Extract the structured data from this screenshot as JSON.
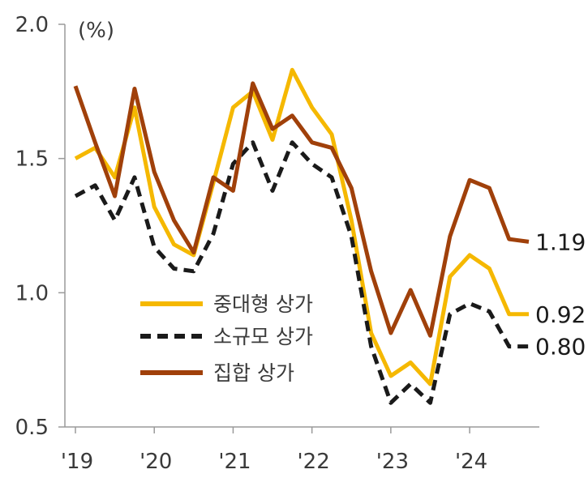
{
  "chart_data": {
    "type": "line",
    "title": "",
    "unit_label": "(%)",
    "xlabel": "",
    "ylabel": "",
    "ylim": [
      0.5,
      2.0
    ],
    "y_ticks": [
      "2.0",
      "1.5",
      "1.0",
      "0.5"
    ],
    "x_tick_labels": [
      "'19",
      "'20",
      "'21",
      "'22",
      "'23",
      "'24"
    ],
    "x_tick_positions": [
      0,
      4,
      8,
      12,
      16,
      20
    ],
    "grid": false,
    "legend_position": "center-left",
    "x": [
      0,
      1,
      2,
      3,
      4,
      5,
      6,
      7,
      8,
      9,
      10,
      11,
      12,
      13,
      14,
      15,
      16,
      17,
      18,
      19,
      20,
      21,
      22,
      23
    ],
    "series": [
      {
        "name": "중대형 상가",
        "color": "#F5B800",
        "dash": "solid",
        "values": [
          1.5,
          1.54,
          1.43,
          1.69,
          1.32,
          1.18,
          1.14,
          1.41,
          1.69,
          1.75,
          1.57,
          1.83,
          1.69,
          1.59,
          1.27,
          0.85,
          0.69,
          0.74,
          0.66,
          1.06,
          1.14,
          1.09,
          0.92,
          0.92
        ],
        "end_label": "0.92"
      },
      {
        "name": "소규모 상가",
        "color": "#1a1a1a",
        "dash": "dashed",
        "values": [
          1.36,
          1.4,
          1.27,
          1.43,
          1.17,
          1.09,
          1.08,
          1.22,
          1.48,
          1.56,
          1.38,
          1.56,
          1.48,
          1.43,
          1.21,
          0.8,
          0.59,
          0.66,
          0.59,
          0.92,
          0.96,
          0.93,
          0.8,
          0.8
        ],
        "end_label": "0.80"
      },
      {
        "name": "집합 상가",
        "color": "#A0400A",
        "dash": "solid",
        "values": [
          1.77,
          1.56,
          1.36,
          1.76,
          1.45,
          1.27,
          1.15,
          1.43,
          1.38,
          1.78,
          1.61,
          1.66,
          1.56,
          1.54,
          1.39,
          1.08,
          0.85,
          1.01,
          0.84,
          1.21,
          1.42,
          1.39,
          1.2,
          1.19
        ],
        "end_label": "1.19"
      }
    ]
  }
}
